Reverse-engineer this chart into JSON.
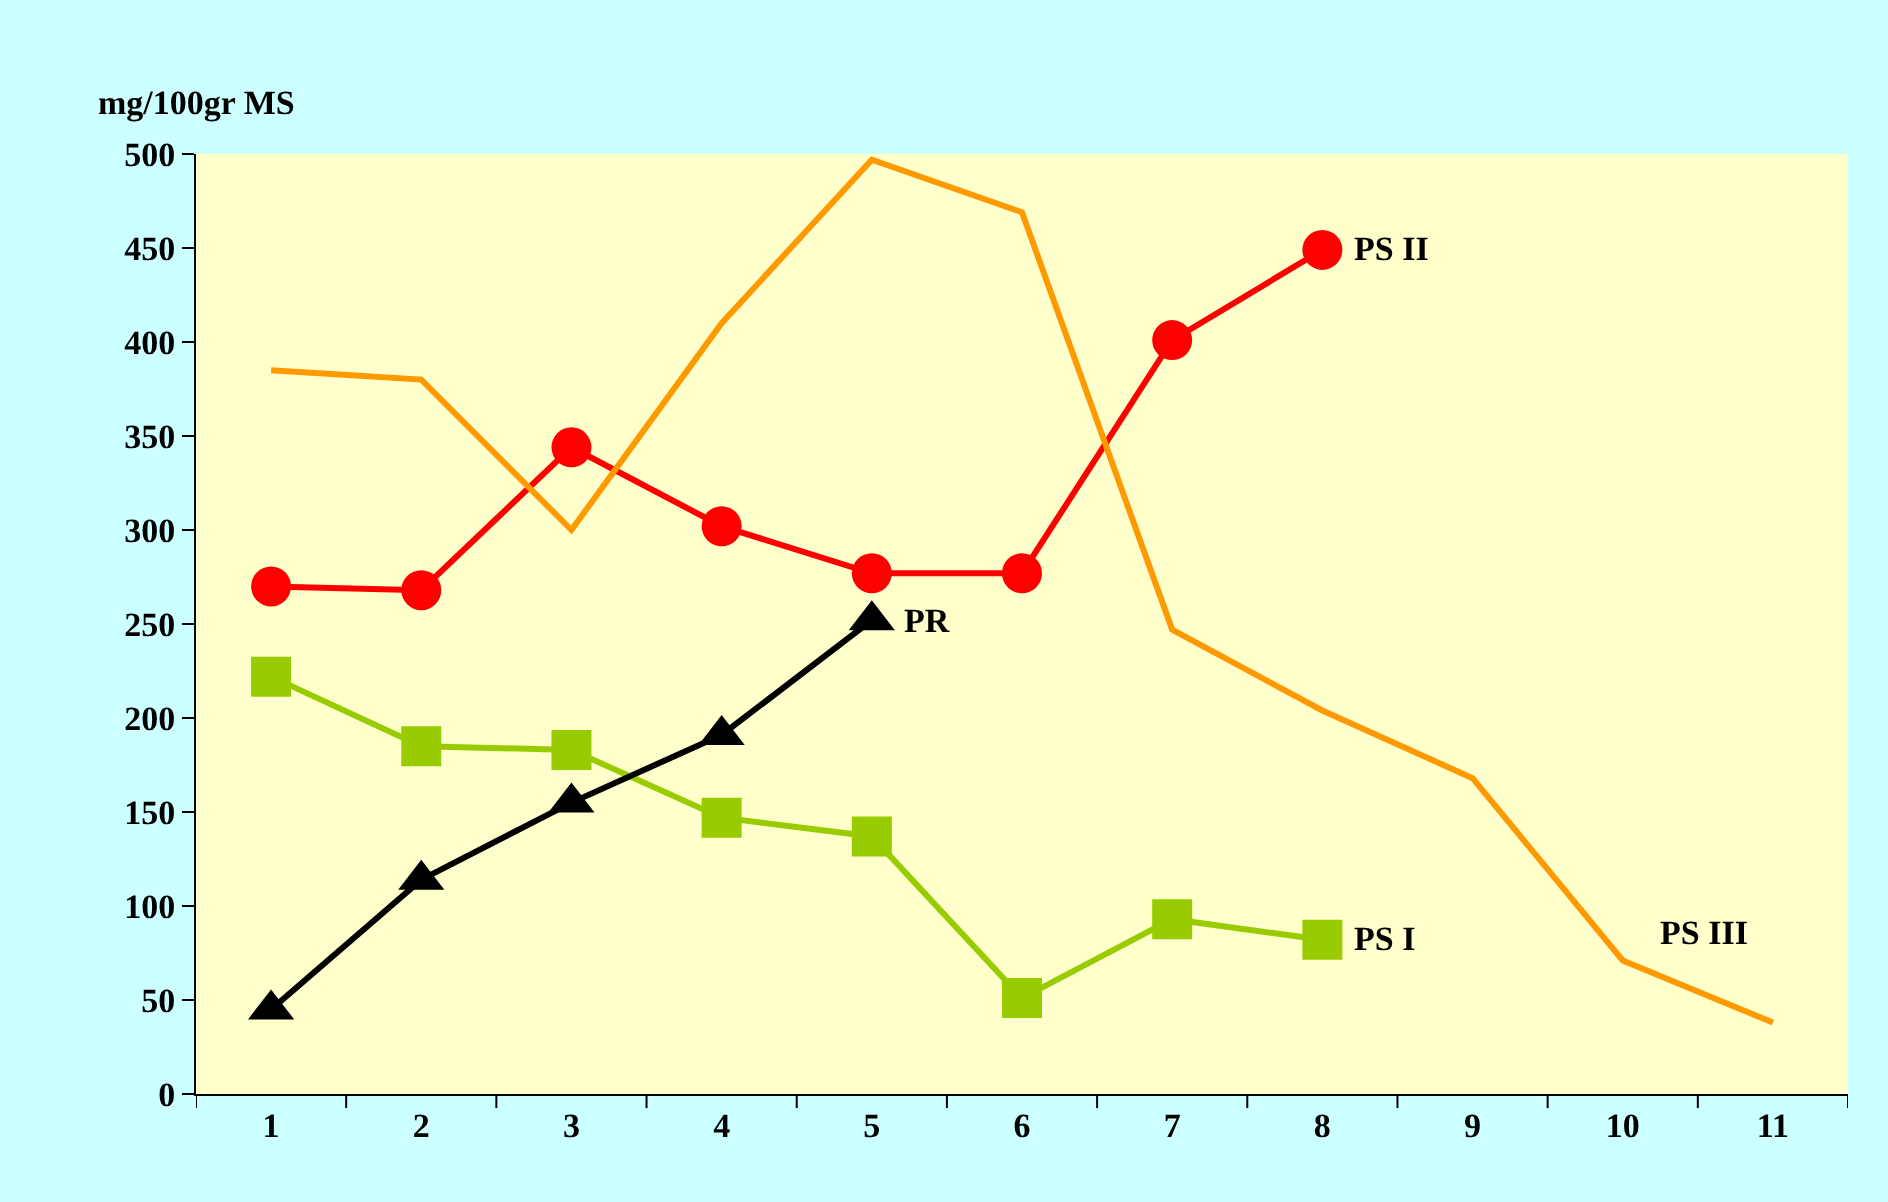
{
  "chart_data": {
    "type": "line",
    "ylabel": "mg/100gr MS",
    "categories": [
      "1",
      "2",
      "3",
      "4",
      "5",
      "6",
      "7",
      "8",
      "9",
      "10",
      "11"
    ],
    "series": [
      {
        "name": "PS II",
        "color": "#ff0000",
        "marker": "circle",
        "values": [
          270,
          268,
          344,
          302,
          277,
          277,
          401,
          449,
          null,
          null,
          null
        ]
      },
      {
        "name": "PS I",
        "color": "#99cc00",
        "marker": "square",
        "values": [
          222,
          185,
          183,
          147,
          137,
          51,
          93,
          82,
          null,
          null,
          null
        ]
      },
      {
        "name": "PR",
        "color": "#000000",
        "marker": "triangle",
        "values": [
          45,
          114,
          155,
          191,
          252,
          null,
          null,
          null,
          null,
          null,
          null
        ]
      },
      {
        "name": "PS III",
        "color": "#ff9900",
        "marker": "none",
        "values": [
          385,
          380,
          300,
          410,
          497,
          469,
          247,
          204,
          168,
          71,
          38
        ]
      }
    ],
    "ylim": [
      0,
      500
    ],
    "yticks": [
      0,
      50,
      100,
      150,
      200,
      250,
      300,
      350,
      400,
      450,
      500
    ],
    "grid": false,
    "legend": false,
    "line_style": "solid"
  }
}
